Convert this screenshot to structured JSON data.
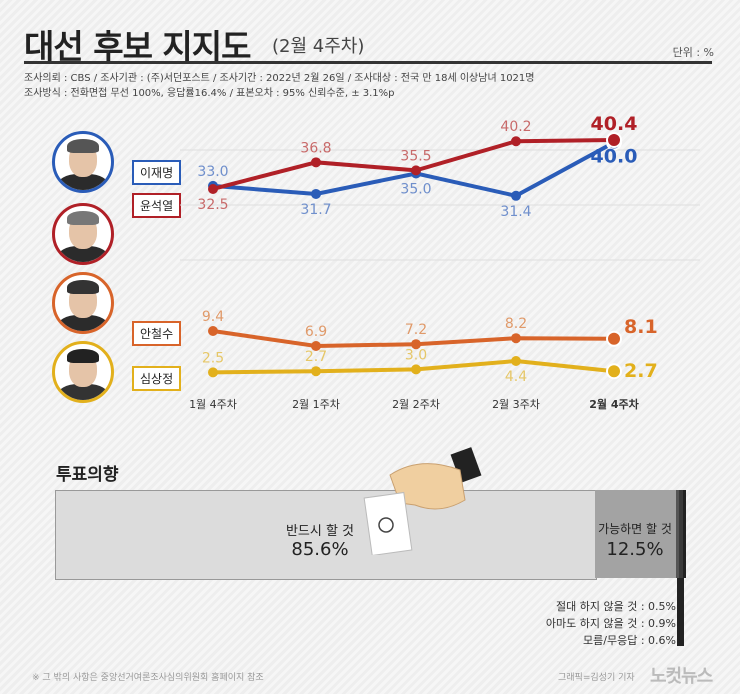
{
  "header": {
    "title": "대선 후보 지지도",
    "subtitle": "(2월 4주차)",
    "unit": "단위 : %",
    "meta1": "조사의뢰 : CBS / 조사기관 :  (주)서던포스트 / 조사기간 : 2022년  2월 26일 / 조사대상 : 전국 만 18세 이상남녀 1021명",
    "meta2": "조사방식 : 전화면접 무선 100%, 응답률16.4% / 표본오차 : 95% 신뢰수준, ± 3.1%p"
  },
  "chart_data": {
    "type": "line",
    "categories": [
      "1월 4주차",
      "2월 1주차",
      "2월 2주차",
      "2월 3주차",
      "2월 4주차"
    ],
    "series": [
      {
        "name": "이재명",
        "values": [
          33.0,
          31.7,
          35.0,
          31.4,
          40.0
        ],
        "color": "#2a5cb8",
        "label_color": "#6f8fcc"
      },
      {
        "name": "윤석열",
        "values": [
          32.5,
          36.8,
          35.5,
          40.2,
          40.4
        ],
        "color": "#b02027",
        "label_color": "#c86a6a"
      },
      {
        "name": "안철수",
        "values": [
          9.4,
          6.9,
          7.2,
          8.2,
          8.1
        ],
        "color": "#d8642a",
        "label_color": "#e09a6a"
      },
      {
        "name": "심상정",
        "values": [
          2.5,
          2.7,
          3.0,
          4.4,
          2.7
        ],
        "color": "#e2b01c",
        "label_color": "#e6c768"
      }
    ]
  },
  "vote_intention": {
    "title": "투표의향",
    "items": [
      {
        "label": "반드시 할 것",
        "value": "85.6%",
        "pct": 85.6,
        "color": "#dcdcdc"
      },
      {
        "label": "가능하면 할 것",
        "value": "12.5%",
        "pct": 12.5,
        "color": "#a3a3a3"
      },
      {
        "label": "절대 하지 않을 것 : 0.5%",
        "pct": 0.5,
        "color": "#555555"
      },
      {
        "label": "아마도 하지 않을 것 : 0.9%",
        "pct": 0.9,
        "color": "#3a3a3a"
      },
      {
        "label": "모름/무응답 : 0.6%",
        "pct": 0.6,
        "color": "#222222"
      }
    ]
  },
  "footer": {
    "note": "※ 그 밖의 사항은 중앙선거여론조사심의위원회 홈페이지 참조",
    "credit": "그래픽=김성기 기자",
    "logo": "노컷뉴스"
  }
}
